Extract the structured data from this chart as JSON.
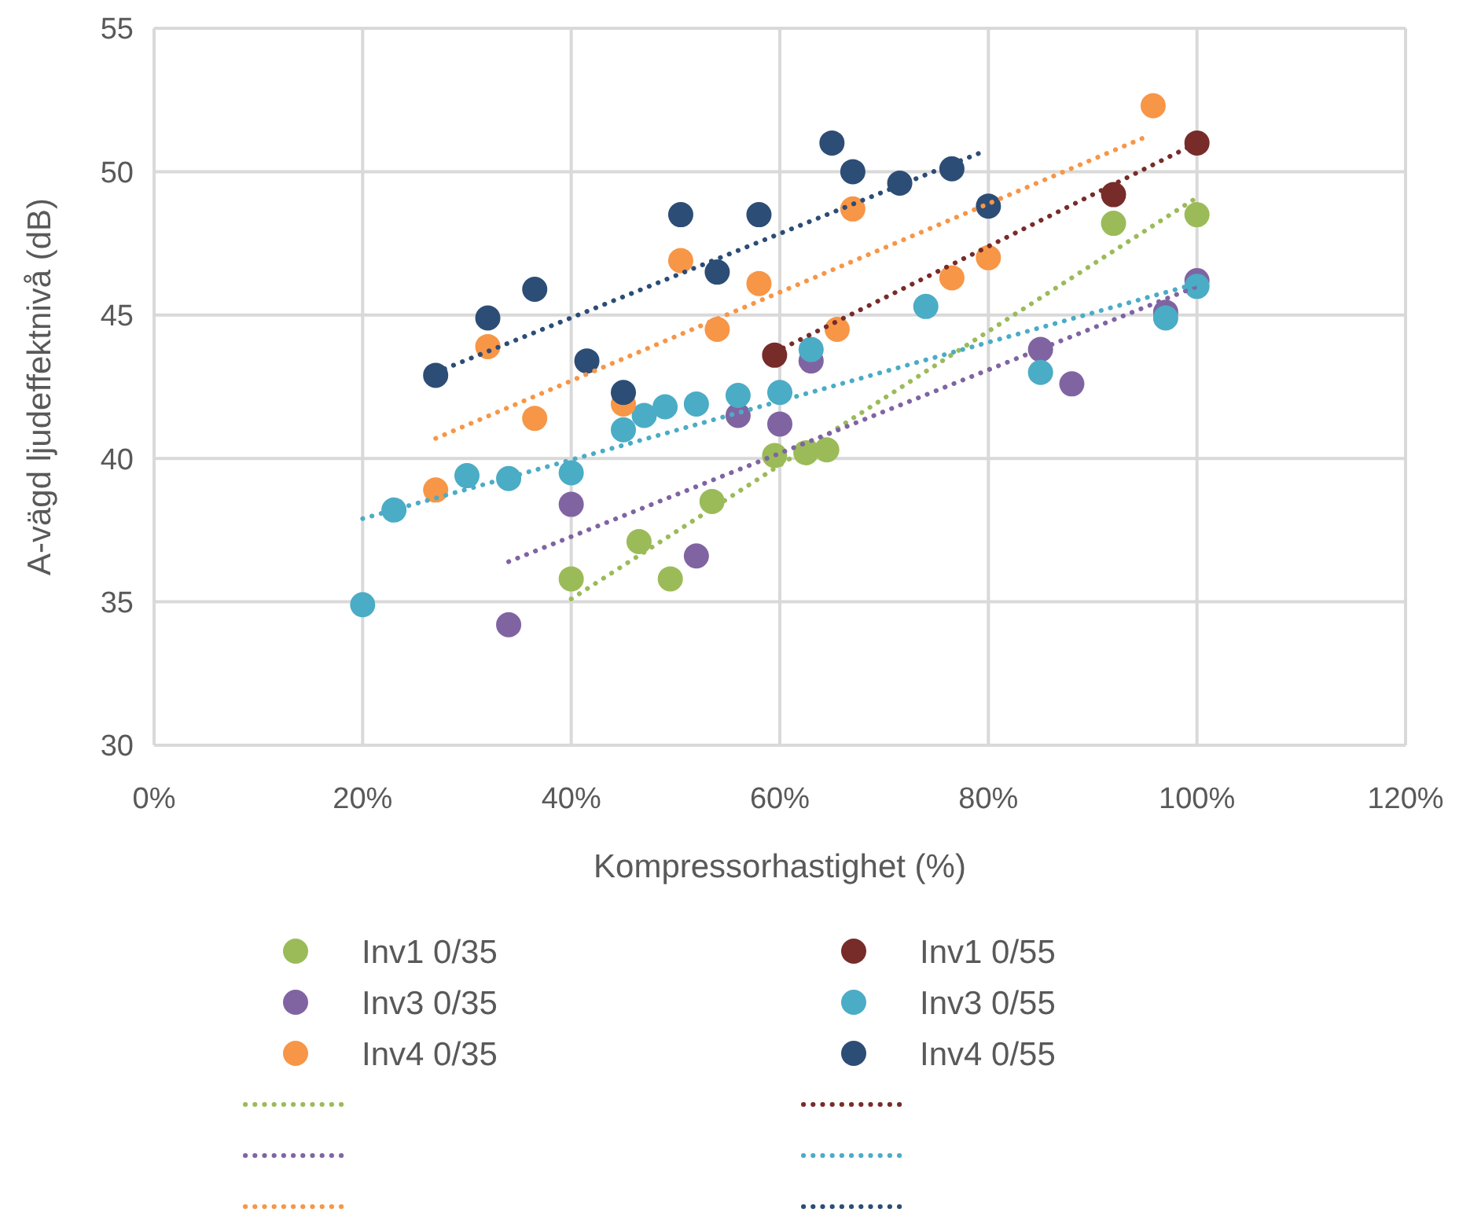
{
  "chart_data": {
    "type": "scatter",
    "xlabel": "Kompressorhastighet (%)",
    "ylabel": "A-vägd ljudeffektnivå (dB)",
    "xlim": [
      0,
      120
    ],
    "ylim": [
      30,
      55
    ],
    "xticks": [
      {
        "value": 0,
        "label": "0%"
      },
      {
        "value": 20,
        "label": "20%"
      },
      {
        "value": 40,
        "label": "40%"
      },
      {
        "value": 60,
        "label": "60%"
      },
      {
        "value": 80,
        "label": "80%"
      },
      {
        "value": 100,
        "label": "100%"
      },
      {
        "value": 120,
        "label": "120%"
      }
    ],
    "yticks": [
      30,
      35,
      40,
      45,
      50,
      55
    ],
    "grid": true,
    "legend": "bottom",
    "marker": "circle",
    "series": [
      {
        "name": "Inv1 0/35",
        "color": "#9bbb59",
        "x": [
          40,
          46.5,
          49.5,
          53.5,
          59.5,
          62.5,
          64.5,
          92,
          100
        ],
        "values": [
          35.8,
          37.1,
          35.8,
          38.5,
          40.1,
          40.2,
          40.3,
          48.2,
          48.5
        ]
      },
      {
        "name": "Inv1 0/55",
        "color": "#772c2a",
        "x": [
          59.5,
          92,
          100
        ],
        "values": [
          43.6,
          49.2,
          51.0
        ]
      },
      {
        "name": "Inv3 0/35",
        "color": "#8064a2",
        "x": [
          34,
          40,
          52,
          56,
          60,
          63,
          85,
          88,
          97,
          100
        ],
        "values": [
          34.2,
          38.4,
          36.6,
          41.5,
          41.2,
          43.4,
          43.8,
          42.6,
          45.1,
          46.2
        ]
      },
      {
        "name": "Inv3 0/55",
        "color": "#4bacc6",
        "x": [
          20,
          23,
          30,
          34,
          40,
          45,
          47,
          49,
          52,
          56,
          60,
          63,
          74,
          85,
          97,
          100
        ],
        "values": [
          34.9,
          38.2,
          39.4,
          39.3,
          39.5,
          41.0,
          41.5,
          41.8,
          41.9,
          42.2,
          42.3,
          43.8,
          45.3,
          43.0,
          44.9,
          46.0
        ]
      },
      {
        "name": "Inv4 0/35",
        "color": "#f79646",
        "x": [
          27,
          32,
          36.5,
          45,
          50.5,
          54,
          58,
          65.5,
          67,
          76.5,
          80,
          95.8
        ],
        "values": [
          38.9,
          43.9,
          41.4,
          41.9,
          46.9,
          44.5,
          46.1,
          44.5,
          48.7,
          46.3,
          47.0,
          52.3
        ]
      },
      {
        "name": "Inv4 0/55",
        "color": "#2c4d75",
        "x": [
          27,
          32,
          36.5,
          41.5,
          45,
          50.5,
          54,
          58,
          65,
          67,
          71.5,
          76.5,
          80
        ],
        "values": [
          42.9,
          44.9,
          45.9,
          43.4,
          42.3,
          48.5,
          46.5,
          48.5,
          51.0,
          50.0,
          49.6,
          50.1,
          48.8
        ]
      },
      {
        "type": "line",
        "line_style": "dotted",
        "marker": "none",
        "color": "#9bbb59",
        "x": [
          40,
          100
        ],
        "values": [
          35.1,
          49.1
        ]
      },
      {
        "type": "line",
        "line_style": "dotted",
        "marker": "none",
        "color": "#772c2a",
        "x": [
          59.5,
          100
        ],
        "values": [
          43.7,
          51.0
        ]
      },
      {
        "type": "line",
        "line_style": "dotted",
        "marker": "none",
        "color": "#8064a2",
        "x": [
          34,
          100
        ],
        "values": [
          36.4,
          46.0
        ]
      },
      {
        "type": "line",
        "line_style": "dotted",
        "marker": "none",
        "color": "#4bacc6",
        "x": [
          20,
          100
        ],
        "values": [
          37.9,
          46.1
        ]
      },
      {
        "type": "line",
        "line_style": "dotted",
        "marker": "none",
        "color": "#f79646",
        "x": [
          27,
          95
        ],
        "values": [
          40.7,
          51.2
        ]
      },
      {
        "type": "line",
        "line_style": "dotted",
        "marker": "none",
        "color": "#2c4d75",
        "x": [
          27,
          79.5
        ],
        "values": [
          43.0,
          50.7
        ]
      }
    ]
  }
}
